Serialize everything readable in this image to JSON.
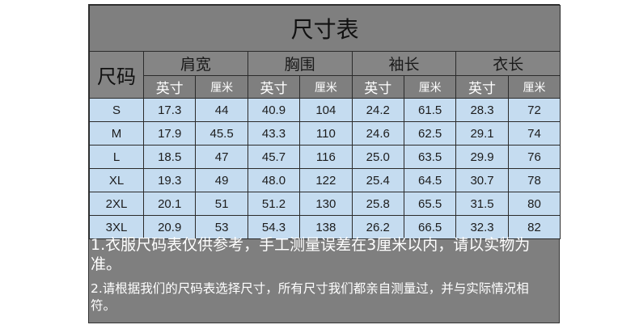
{
  "title": "尺寸表",
  "size_header": "尺码",
  "groups": [
    "肩宽",
    "胸围",
    "袖长",
    "衣长"
  ],
  "units": [
    "英寸",
    "厘米"
  ],
  "rows": [
    {
      "size": "S",
      "values": [
        "17.3",
        "44",
        "40.9",
        "104",
        "24.2",
        "61.5",
        "28.3",
        "72"
      ]
    },
    {
      "size": "M",
      "values": [
        "17.9",
        "45.5",
        "43.3",
        "110",
        "24.6",
        "62.5",
        "29.1",
        "74"
      ]
    },
    {
      "size": "L",
      "values": [
        "18.5",
        "47",
        "45.7",
        "116",
        "25.0",
        "63.5",
        "29.9",
        "76"
      ]
    },
    {
      "size": "XL",
      "values": [
        "19.3",
        "49",
        "48.0",
        "122",
        "25.4",
        "64.5",
        "30.7",
        "78"
      ]
    },
    {
      "size": "2XL",
      "values": [
        "20.1",
        "51",
        "51.2",
        "130",
        "25.8",
        "65.5",
        "31.5",
        "80"
      ]
    },
    {
      "size": "3XL",
      "values": [
        "20.9",
        "53",
        "54.3",
        "138",
        "26.2",
        "66.5",
        "32.3",
        "82"
      ]
    }
  ],
  "notes": [
    "1.衣服尺码表仅供参考，手工测量误差在3厘米以内，请以实物为准。",
    "2.请根据我们的尺码表选择尺寸，所有尺寸我们都亲自测量过，并与实际情况相符。"
  ],
  "colors": {
    "panel": "#7f7f7f",
    "data_cell": "#c5dcf0",
    "border": "#2b2b2b"
  }
}
